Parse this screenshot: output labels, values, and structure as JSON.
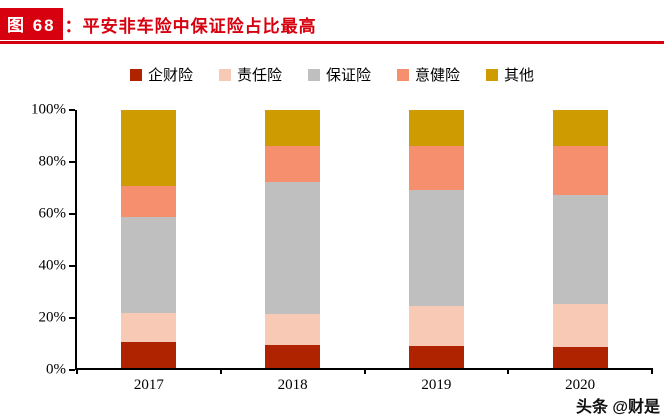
{
  "header": {
    "badge": "图 68",
    "title": "：平安非车险中保证险占比最高",
    "accent_color": "#d7000f"
  },
  "chart_data": {
    "type": "bar",
    "stacked": true,
    "title": "平安非车险中保证险占比最高",
    "unit": "%",
    "categories": [
      "2017",
      "2018",
      "2019",
      "2020"
    ],
    "series": [
      {
        "name": "企财险",
        "color": "#b02300",
        "values": [
          10,
          9,
          8.5,
          8
        ]
      },
      {
        "name": "责任险",
        "color": "#f8c9b4",
        "values": [
          11.5,
          12,
          15.5,
          17
        ]
      },
      {
        "name": "保证险",
        "color": "#bfbfbf",
        "values": [
          37,
          51,
          45,
          42
        ]
      },
      {
        "name": "意健险",
        "color": "#f58f6e",
        "values": [
          12,
          14,
          17,
          19
        ]
      },
      {
        "name": "其他",
        "color": "#ce9c00",
        "values": [
          29.5,
          14,
          14,
          14
        ]
      }
    ],
    "ylim": [
      0,
      100
    ],
    "yticks": [
      {
        "value": 0,
        "label": "0%"
      },
      {
        "value": 20,
        "label": "20%"
      },
      {
        "value": 40,
        "label": "40%"
      },
      {
        "value": 60,
        "label": "60%"
      },
      {
        "value": 80,
        "label": "80%"
      },
      {
        "value": 100,
        "label": "100%"
      }
    ],
    "legend_position": "top",
    "grid": false
  },
  "watermark": "头条 @财是"
}
